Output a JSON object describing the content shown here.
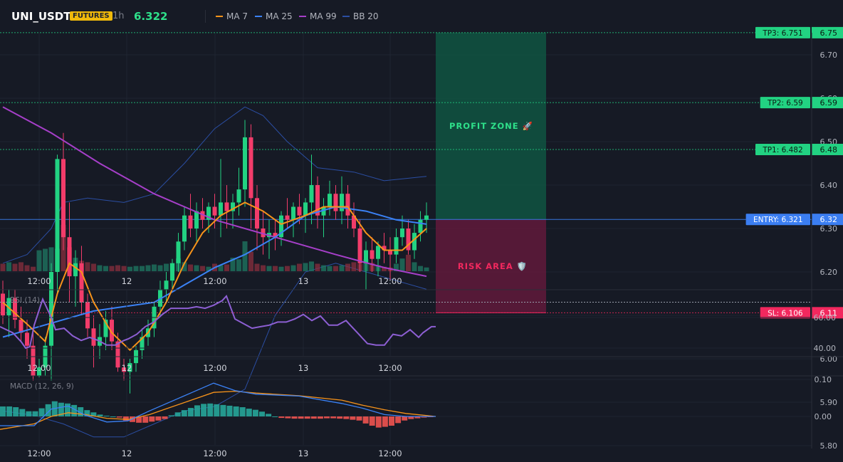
{
  "header": {
    "symbol": "UNI_USDT",
    "badge": "FUTURES",
    "timeframe": "1h",
    "price": "6.322",
    "legend": [
      {
        "label": "MA 7",
        "color": "#f7931a"
      },
      {
        "label": "MA 25",
        "color": "#3b82f6"
      },
      {
        "label": "MA 99",
        "color": "#a63fc9"
      },
      {
        "label": "BB 20",
        "color": "#2b4ea3"
      }
    ]
  },
  "colors": {
    "up": "#22d282",
    "down": "#f23c6a",
    "background": "#161a25",
    "grid": "#1f2431",
    "profit": "#0f5c46",
    "risk": "#6b1a3d"
  },
  "chart_data": [
    {
      "type": "candlestick",
      "y_ticks": [
        "6.70",
        "6.60",
        "6.50",
        "6.40",
        "6.30",
        "6.20",
        "6.10",
        "6.00",
        "5.90",
        "5.80"
      ],
      "x_ticks": [
        "12:00",
        "12",
        "12:00",
        "13",
        "12:00"
      ],
      "ylim": [
        5.72,
        6.77
      ],
      "candles": [
        [
          6.15,
          6.18,
          6.08,
          6.1
        ],
        [
          6.1,
          6.16,
          6.05,
          6.14
        ],
        [
          6.14,
          6.16,
          6.07,
          6.09
        ],
        [
          6.09,
          6.12,
          6.04,
          6.06
        ],
        [
          6.06,
          6.09,
          6.0,
          6.03
        ],
        [
          6.03,
          6.06,
          5.95,
          5.96
        ],
        [
          5.96,
          6.0,
          5.89,
          5.98
        ],
        [
          5.98,
          6.05,
          5.96,
          6.03
        ],
        [
          6.03,
          6.22,
          5.95,
          6.2
        ],
        [
          6.2,
          6.47,
          6.15,
          6.46
        ],
        [
          6.46,
          6.52,
          6.25,
          6.28
        ],
        [
          6.28,
          6.36,
          6.13,
          6.19
        ],
        [
          6.19,
          6.25,
          6.12,
          6.22
        ],
        [
          6.22,
          6.26,
          6.1,
          6.13
        ],
        [
          6.13,
          6.15,
          6.05,
          6.07
        ],
        [
          6.07,
          6.1,
          5.98,
          6.03
        ],
        [
          6.03,
          6.08,
          6.0,
          6.05
        ],
        [
          6.05,
          6.11,
          6.02,
          6.09
        ],
        [
          6.09,
          6.12,
          6.02,
          6.04
        ],
        [
          6.04,
          6.06,
          5.97,
          5.98
        ],
        [
          5.98,
          6.0,
          5.95,
          5.97
        ],
        [
          5.97,
          6.0,
          5.92,
          5.99
        ],
        [
          5.99,
          6.03,
          5.97,
          6.02
        ],
        [
          6.02,
          6.07,
          6.0,
          6.05
        ],
        [
          6.05,
          6.09,
          6.03,
          6.07
        ],
        [
          6.07,
          6.13,
          6.05,
          6.12
        ],
        [
          6.12,
          6.18,
          6.1,
          6.16
        ],
        [
          6.16,
          6.2,
          6.13,
          6.18
        ],
        [
          6.18,
          6.23,
          6.16,
          6.22
        ],
        [
          6.22,
          6.29,
          6.2,
          6.27
        ],
        [
          6.27,
          6.35,
          6.25,
          6.33
        ],
        [
          6.33,
          6.38,
          6.28,
          6.3
        ],
        [
          6.3,
          6.36,
          6.27,
          6.34
        ],
        [
          6.34,
          6.37,
          6.3,
          6.32
        ],
        [
          6.32,
          6.36,
          6.29,
          6.35
        ],
        [
          6.35,
          6.38,
          6.3,
          6.33
        ],
        [
          6.33,
          6.46,
          6.28,
          6.36
        ],
        [
          6.36,
          6.4,
          6.3,
          6.34
        ],
        [
          6.34,
          6.38,
          6.3,
          6.36
        ],
        [
          6.36,
          6.44,
          6.33,
          6.39
        ],
        [
          6.39,
          6.55,
          6.35,
          6.51
        ],
        [
          6.51,
          6.54,
          6.3,
          6.37
        ],
        [
          6.37,
          6.4,
          6.25,
          6.3
        ],
        [
          6.3,
          6.34,
          6.24,
          6.28
        ],
        [
          6.28,
          6.32,
          6.23,
          6.29
        ],
        [
          6.29,
          6.32,
          6.25,
          6.28
        ],
        [
          6.28,
          6.34,
          6.26,
          6.33
        ],
        [
          6.33,
          6.37,
          6.3,
          6.32
        ],
        [
          6.32,
          6.36,
          6.28,
          6.35
        ],
        [
          6.35,
          6.38,
          6.31,
          6.33
        ],
        [
          6.33,
          6.37,
          6.29,
          6.36
        ],
        [
          6.36,
          6.47,
          6.31,
          6.4
        ],
        [
          6.4,
          6.42,
          6.3,
          6.33
        ],
        [
          6.33,
          6.37,
          6.28,
          6.35
        ],
        [
          6.35,
          6.41,
          6.33,
          6.38
        ],
        [
          6.38,
          6.4,
          6.32,
          6.34
        ],
        [
          6.34,
          6.42,
          6.31,
          6.38
        ],
        [
          6.38,
          6.4,
          6.3,
          6.33
        ],
        [
          6.33,
          6.36,
          6.28,
          6.3
        ],
        [
          6.3,
          6.32,
          6.2,
          6.22
        ],
        [
          6.22,
          6.27,
          6.16,
          6.25
        ],
        [
          6.25,
          6.28,
          6.2,
          6.23
        ],
        [
          6.23,
          6.27,
          6.19,
          6.26
        ],
        [
          6.26,
          6.29,
          6.22,
          6.25
        ],
        [
          6.25,
          6.28,
          6.18,
          6.24
        ],
        [
          6.24,
          6.3,
          6.22,
          6.28
        ],
        [
          6.28,
          6.33,
          6.26,
          6.3
        ],
        [
          6.3,
          6.32,
          6.24,
          6.25
        ],
        [
          6.25,
          6.31,
          6.23,
          6.29
        ],
        [
          6.29,
          6.34,
          6.27,
          6.32
        ],
        [
          6.32,
          6.36,
          6.29,
          6.33
        ]
      ],
      "ma7": [
        [
          0,
          6.13
        ],
        [
          4,
          6.08
        ],
        [
          7,
          6.04
        ],
        [
          9,
          6.15
        ],
        [
          11,
          6.22
        ],
        [
          13,
          6.2
        ],
        [
          15,
          6.13
        ],
        [
          18,
          6.06
        ],
        [
          21,
          6.02
        ],
        [
          24,
          6.06
        ],
        [
          27,
          6.13
        ],
        [
          30,
          6.22
        ],
        [
          33,
          6.29
        ],
        [
          36,
          6.33
        ],
        [
          40,
          6.36
        ],
        [
          43,
          6.34
        ],
        [
          46,
          6.31
        ],
        [
          50,
          6.33
        ],
        [
          53,
          6.35
        ],
        [
          57,
          6.35
        ],
        [
          60,
          6.29
        ],
        [
          63,
          6.25
        ],
        [
          66,
          6.25
        ],
        [
          70,
          6.3
        ]
      ],
      "ma25": [
        [
          0,
          6.05
        ],
        [
          5,
          6.07
        ],
        [
          10,
          6.09
        ],
        [
          15,
          6.11
        ],
        [
          20,
          6.12
        ],
        [
          25,
          6.13
        ],
        [
          30,
          6.17
        ],
        [
          35,
          6.21
        ],
        [
          40,
          6.24
        ],
        [
          45,
          6.28
        ],
        [
          50,
          6.33
        ],
        [
          55,
          6.35
        ],
        [
          60,
          6.34
        ],
        [
          65,
          6.32
        ],
        [
          70,
          6.31
        ]
      ],
      "ma99": [
        [
          0,
          6.58
        ],
        [
          8,
          6.52
        ],
        [
          16,
          6.45
        ],
        [
          25,
          6.38
        ],
        [
          35,
          6.32
        ],
        [
          45,
          6.28
        ],
        [
          55,
          6.24
        ],
        [
          63,
          6.21
        ],
        [
          70,
          6.19
        ]
      ],
      "bb_upper": [
        [
          0,
          6.22
        ],
        [
          4,
          6.24
        ],
        [
          8,
          6.3
        ],
        [
          10,
          6.36
        ],
        [
          14,
          6.37
        ],
        [
          20,
          6.36
        ],
        [
          25,
          6.38
        ],
        [
          30,
          6.45
        ],
        [
          35,
          6.53
        ],
        [
          40,
          6.58
        ],
        [
          43,
          6.56
        ],
        [
          47,
          6.5
        ],
        [
          52,
          6.44
        ],
        [
          58,
          6.43
        ],
        [
          63,
          6.41
        ],
        [
          70,
          6.42
        ]
      ],
      "bb_lower": [
        [
          0,
          5.88
        ],
        [
          5,
          5.87
        ],
        [
          10,
          5.85
        ],
        [
          15,
          5.82
        ],
        [
          20,
          5.82
        ],
        [
          25,
          5.85
        ],
        [
          30,
          5.88
        ],
        [
          35,
          5.89
        ],
        [
          40,
          5.93
        ],
        [
          45,
          6.1
        ],
        [
          50,
          6.2
        ],
        [
          55,
          6.22
        ],
        [
          60,
          6.2
        ],
        [
          65,
          6.18
        ],
        [
          70,
          6.16
        ]
      ],
      "volume": [
        0.1,
        0.12,
        0.1,
        0.12,
        0.08,
        0.06,
        0.28,
        0.3,
        0.32,
        0.3,
        0.62,
        0.32,
        0.18,
        0.14,
        0.12,
        0.1,
        0.08,
        0.07,
        0.07,
        0.08,
        0.07,
        0.06,
        0.07,
        0.07,
        0.08,
        0.09,
        0.08,
        0.1,
        0.11,
        0.17,
        0.12,
        0.09,
        0.08,
        0.07,
        0.06,
        0.1,
        0.08,
        0.09,
        0.18,
        0.16,
        0.4,
        0.26,
        0.1,
        0.08,
        0.07,
        0.07,
        0.06,
        0.07,
        0.08,
        0.1,
        0.11,
        0.13,
        0.1,
        0.08,
        0.07,
        0.07,
        0.08,
        0.1,
        0.12,
        0.1,
        0.16,
        0.11,
        0.08,
        0.06,
        0.05,
        0.1,
        0.17,
        0.22,
        0.12,
        0.07,
        0.05
      ],
      "levels": [
        {
          "label": "TP3: 6.751",
          "value": 6.751,
          "tick": "6.75",
          "color": "#22d282"
        },
        {
          "label": "TP2: 6.59",
          "value": 6.59,
          "tick": "6.59",
          "color": "#22d282"
        },
        {
          "label": "TP1: 6.482",
          "value": 6.482,
          "tick": "6.48",
          "color": "#22d282"
        },
        {
          "label": "ENTRY: 6.321",
          "value": 6.321,
          "tick": "6.32",
          "color": "#3b7ef2"
        },
        {
          "label": "SL: 6.106",
          "value": 6.106,
          "tick": "6.11",
          "color": "#f2285e"
        }
      ],
      "zones": {
        "profit_label": "PROFIT ZONE 🚀",
        "risk_label": "RISK AREA 🛡️"
      }
    },
    {
      "type": "line",
      "title": "RSI (14)",
      "ylim": [
        35,
        75
      ],
      "y_ticks": [
        "60.00",
        "40.00"
      ],
      "overbought": 70,
      "x_ticks": [
        "12:00",
        "12",
        "12:00",
        "13",
        "12:00"
      ],
      "rsi": [
        [
          0,
          54
        ],
        [
          3,
          50
        ],
        [
          5,
          44
        ],
        [
          6,
          40
        ],
        [
          7,
          41
        ],
        [
          8,
          55
        ],
        [
          10,
          72
        ],
        [
          12,
          60
        ],
        [
          13,
          52
        ],
        [
          15,
          53
        ],
        [
          17,
          48
        ],
        [
          19,
          45
        ],
        [
          21,
          47
        ],
        [
          23,
          45
        ],
        [
          25,
          42
        ],
        [
          27,
          42
        ],
        [
          29,
          45
        ],
        [
          30,
          46
        ],
        [
          32,
          49
        ],
        [
          34,
          54
        ],
        [
          36,
          57
        ],
        [
          38,
          62
        ],
        [
          40,
          66
        ],
        [
          42,
          66
        ],
        [
          44,
          66
        ],
        [
          46,
          67
        ],
        [
          48,
          66
        ],
        [
          50,
          68
        ],
        [
          52,
          71
        ],
        [
          53,
          74
        ],
        [
          55,
          59
        ],
        [
          57,
          56
        ],
        [
          59,
          53
        ],
        [
          61,
          54
        ],
        [
          63,
          55
        ],
        [
          65,
          57
        ],
        [
          67,
          57
        ],
        [
          69,
          59
        ],
        [
          71,
          62
        ],
        [
          73,
          58
        ],
        [
          75,
          61
        ],
        [
          77,
          55
        ],
        [
          79,
          55
        ],
        [
          81,
          58
        ],
        [
          82,
          55
        ],
        [
          84,
          49
        ],
        [
          86,
          43
        ],
        [
          88,
          42
        ],
        [
          90,
          42
        ],
        [
          92,
          49
        ],
        [
          94,
          48
        ],
        [
          96,
          52
        ],
        [
          98,
          47
        ],
        [
          99,
          50
        ],
        [
          101,
          54
        ],
        [
          102,
          54
        ]
      ]
    },
    {
      "type": "bar",
      "title": "MACD (12, 26, 9)",
      "ylim": [
        -0.072,
        0.1
      ],
      "y_ticks": [
        "0.10",
        "0.00"
      ],
      "x_ticks": [
        "12:00",
        "12",
        "12:00",
        "13",
        "12:00"
      ],
      "histogram": [
        0.027,
        0.027,
        0.025,
        0.02,
        0.014,
        0.014,
        0.022,
        0.033,
        0.041,
        0.037,
        0.035,
        0.031,
        0.025,
        0.017,
        0.011,
        0.005,
        0.002,
        0.0,
        -0.003,
        -0.011,
        -0.015,
        -0.017,
        -0.017,
        -0.014,
        -0.011,
        -0.007,
        0.003,
        0.011,
        0.017,
        0.023,
        0.03,
        0.034,
        0.035,
        0.033,
        0.031,
        0.029,
        0.027,
        0.025,
        0.021,
        0.018,
        0.013,
        0.007,
        0.0,
        -0.004,
        -0.005,
        -0.006,
        -0.006,
        -0.006,
        -0.006,
        -0.006,
        -0.005,
        -0.005,
        -0.006,
        -0.007,
        -0.009,
        -0.011,
        -0.019,
        -0.025,
        -0.03,
        -0.028,
        -0.025,
        -0.018,
        -0.011,
        -0.007,
        -0.005,
        -0.003,
        -0.001
      ],
      "macd": [
        [
          0,
          -0.025
        ],
        [
          8,
          -0.025
        ],
        [
          12,
          0.02
        ],
        [
          16,
          0.028
        ],
        [
          20,
          0.003
        ],
        [
          25,
          -0.015
        ],
        [
          30,
          -0.012
        ],
        [
          35,
          0.015
        ],
        [
          45,
          0.065
        ],
        [
          50,
          0.09
        ],
        [
          55,
          0.07
        ],
        [
          60,
          0.06
        ],
        [
          70,
          0.055
        ],
        [
          80,
          0.035
        ],
        [
          85,
          0.022
        ],
        [
          90,
          0.005
        ],
        [
          95,
          0.0
        ],
        [
          102,
          0.0
        ]
      ],
      "signal": [
        [
          0,
          -0.035
        ],
        [
          8,
          -0.02
        ],
        [
          12,
          0.0
        ],
        [
          16,
          0.01
        ],
        [
          20,
          0.005
        ],
        [
          25,
          -0.005
        ],
        [
          30,
          -0.008
        ],
        [
          35,
          0.005
        ],
        [
          45,
          0.045
        ],
        [
          50,
          0.065
        ],
        [
          55,
          0.068
        ],
        [
          60,
          0.063
        ],
        [
          70,
          0.056
        ],
        [
          80,
          0.044
        ],
        [
          85,
          0.03
        ],
        [
          90,
          0.018
        ],
        [
          95,
          0.008
        ],
        [
          102,
          0.0
        ]
      ]
    }
  ]
}
